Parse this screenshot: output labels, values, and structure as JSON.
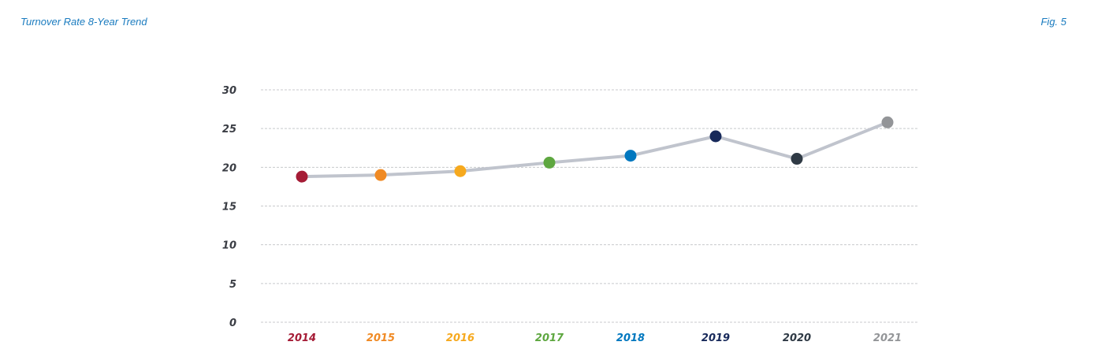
{
  "header": {
    "title": "Turnover Rate 8-Year Trend",
    "figure": "Fig. 5"
  },
  "chart_data": {
    "type": "line",
    "title": "",
    "xlabel": "",
    "ylabel": "",
    "ylim": [
      0,
      30
    ],
    "yticks": [
      0,
      5,
      10,
      15,
      20,
      25,
      30
    ],
    "grid": true,
    "grid_style": "dashed",
    "line_color": "#c0c4cd",
    "categories": [
      "2014",
      "2015",
      "2016",
      "2017",
      "2018",
      "2019",
      "2020",
      "2021"
    ],
    "values": [
      18.8,
      19.0,
      19.5,
      20.6,
      21.5,
      24.0,
      21.1,
      25.8
    ],
    "point_colors": [
      "#a51c36",
      "#f08a24",
      "#f6a91e",
      "#5ea740",
      "#0077bf",
      "#17295a",
      "#2f3a45",
      "#939598"
    ]
  }
}
